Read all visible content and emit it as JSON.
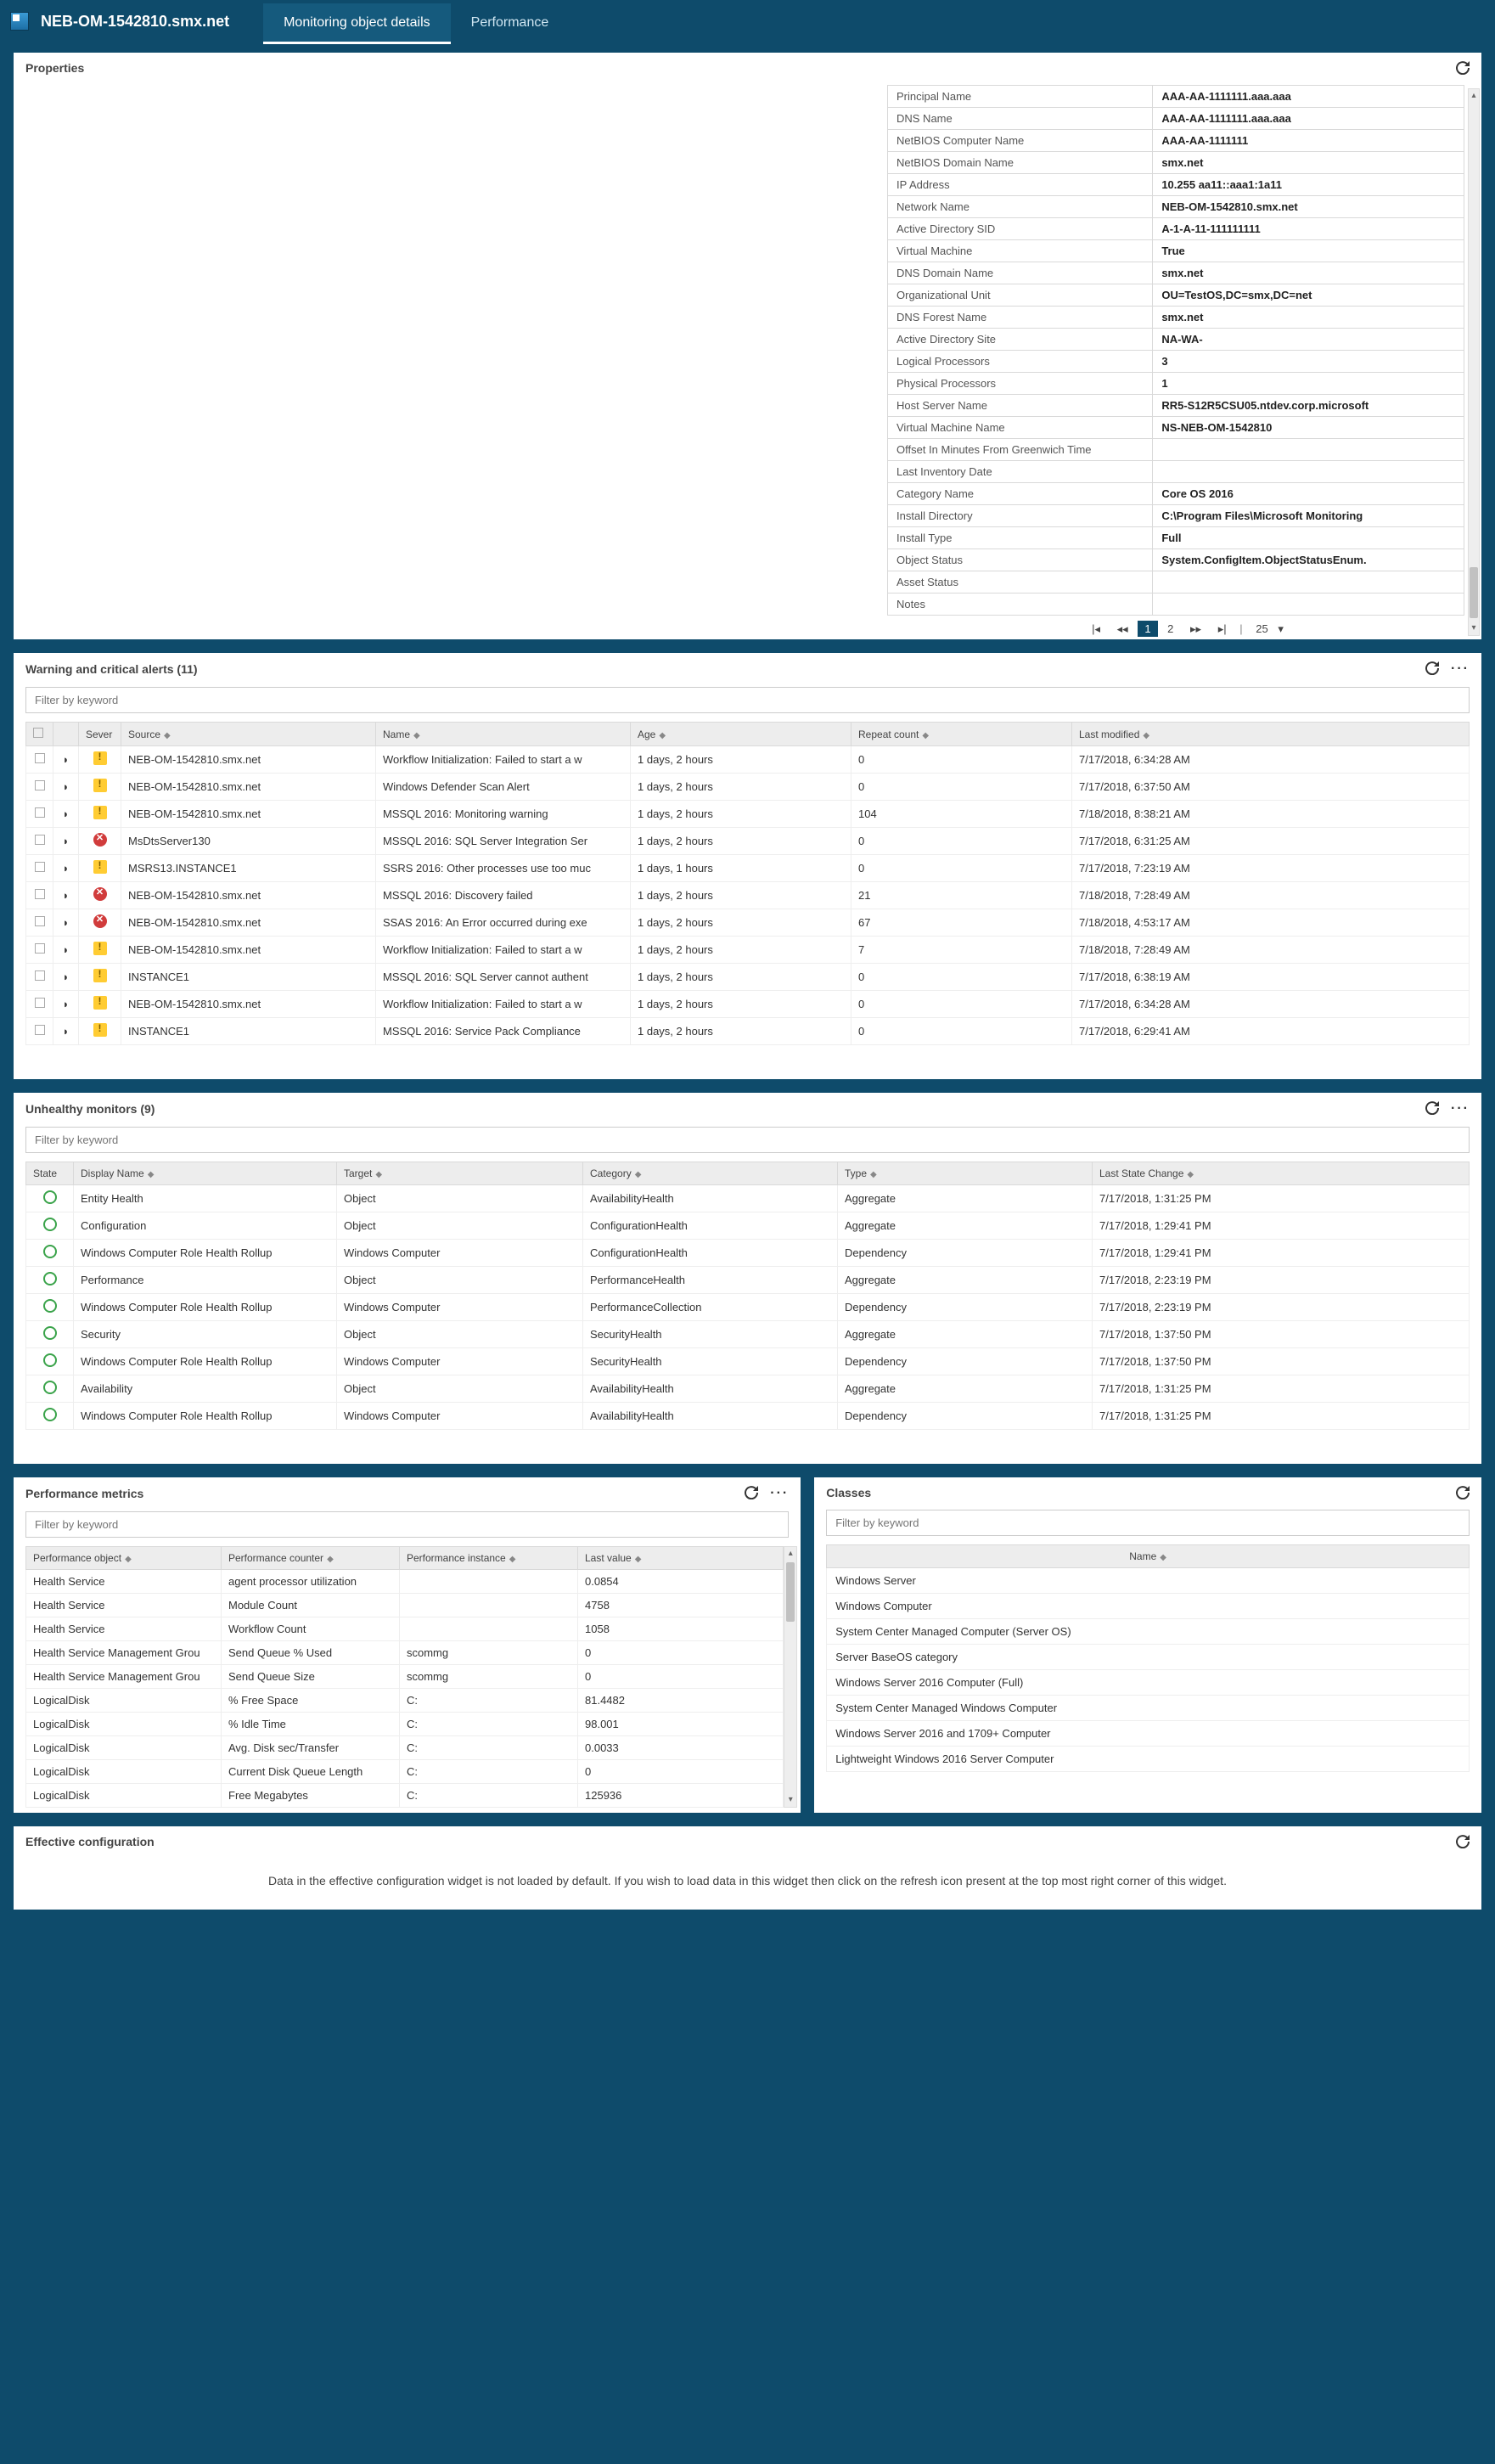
{
  "topbar": {
    "hostname": "NEB-OM-1542810.smx.net",
    "tabs": [
      {
        "label": "Monitoring object details",
        "active": true
      },
      {
        "label": "Performance",
        "active": false
      }
    ]
  },
  "properties": {
    "title": "Properties",
    "rows": [
      {
        "k": "Principal Name",
        "v": "AAA-AA-1111111.aaa.aaa"
      },
      {
        "k": "DNS Name",
        "v": "AAA-AA-1111111.aaa.aaa"
      },
      {
        "k": "NetBIOS Computer Name",
        "v": "AAA-AA-1111111"
      },
      {
        "k": "NetBIOS Domain Name",
        "v": "smx.net"
      },
      {
        "k": "IP Address",
        "v": "10.255     aa11::aaa1:1a11"
      },
      {
        "k": "Network Name",
        "v": "NEB-OM-1542810.smx.net"
      },
      {
        "k": "Active Directory SID",
        "v": "A-1-A-11-111111111"
      },
      {
        "k": "Virtual Machine",
        "v": "True"
      },
      {
        "k": "DNS Domain Name",
        "v": "smx.net"
      },
      {
        "k": "Organizational Unit",
        "v": "OU=TestOS,DC=smx,DC=net"
      },
      {
        "k": "DNS Forest Name",
        "v": "smx.net"
      },
      {
        "k": "Active Directory Site",
        "v": "NA-WA-"
      },
      {
        "k": "Logical Processors",
        "v": "3"
      },
      {
        "k": "Physical Processors",
        "v": "1"
      },
      {
        "k": "Host Server Name",
        "v": "RR5-S12R5CSU05.ntdev.corp.microsoft"
      },
      {
        "k": "Virtual Machine Name",
        "v": "NS-NEB-OM-1542810"
      },
      {
        "k": "Offset In Minutes From Greenwich Time",
        "v": ""
      },
      {
        "k": "Last Inventory Date",
        "v": ""
      },
      {
        "k": "Category Name",
        "v": "Core OS 2016"
      },
      {
        "k": "Install Directory",
        "v": "C:\\Program Files\\Microsoft Monitoring"
      },
      {
        "k": "Install Type",
        "v": "Full"
      },
      {
        "k": "Object Status",
        "v": "System.ConfigItem.ObjectStatusEnum."
      },
      {
        "k": "Asset Status",
        "v": ""
      },
      {
        "k": "Notes",
        "v": ""
      }
    ],
    "pager": {
      "first": "|◂",
      "prev": "◂◂",
      "pages": [
        "1",
        "2"
      ],
      "next": "▸▸",
      "last": "▸|",
      "size": "25",
      "sizeIcon": "▾"
    }
  },
  "alerts": {
    "title": "Warning and critical alerts (11)",
    "filterPlaceholder": "Filter by keyword",
    "columns": {
      "severity": "Sever",
      "source": "Source",
      "name": "Name",
      "age": "Age",
      "repeat": "Repeat count",
      "modified": "Last modified",
      "sort": "◆"
    },
    "rows": [
      {
        "sev": "warn",
        "source": "NEB-OM-1542810.smx.net",
        "name": "Workflow Initialization: Failed to start a w",
        "age": "1 days, 2 hours",
        "repeat": "0",
        "modified": "7/17/2018, 6:34:28 AM"
      },
      {
        "sev": "warn",
        "source": "NEB-OM-1542810.smx.net",
        "name": "Windows Defender Scan Alert",
        "age": "1 days, 2 hours",
        "repeat": "0",
        "modified": "7/17/2018, 6:37:50 AM"
      },
      {
        "sev": "warn",
        "source": "NEB-OM-1542810.smx.net",
        "name": "MSSQL 2016: Monitoring warning",
        "age": "1 days, 2 hours",
        "repeat": "104",
        "modified": "7/18/2018, 8:38:21 AM"
      },
      {
        "sev": "crit",
        "source": "MsDtsServer130",
        "name": "MSSQL 2016: SQL Server Integration Ser",
        "age": "1 days, 2 hours",
        "repeat": "0",
        "modified": "7/17/2018, 6:31:25 AM"
      },
      {
        "sev": "warn",
        "source": "MSRS13.INSTANCE1",
        "name": "SSRS 2016: Other processes use too muc",
        "age": "1 days, 1 hours",
        "repeat": "0",
        "modified": "7/17/2018, 7:23:19 AM"
      },
      {
        "sev": "crit",
        "source": "NEB-OM-1542810.smx.net",
        "name": "MSSQL 2016: Discovery failed",
        "age": "1 days, 2 hours",
        "repeat": "21",
        "modified": "7/18/2018, 7:28:49 AM"
      },
      {
        "sev": "crit",
        "source": "NEB-OM-1542810.smx.net",
        "name": "SSAS 2016: An Error occurred during exe",
        "age": "1 days, 2 hours",
        "repeat": "67",
        "modified": "7/18/2018, 4:53:17 AM"
      },
      {
        "sev": "warn",
        "source": "NEB-OM-1542810.smx.net",
        "name": "Workflow Initialization: Failed to start a w",
        "age": "1 days, 2 hours",
        "repeat": "7",
        "modified": "7/18/2018, 7:28:49 AM"
      },
      {
        "sev": "warn",
        "source": "INSTANCE1",
        "name": "MSSQL 2016: SQL Server cannot authent",
        "age": "1 days, 2 hours",
        "repeat": "0",
        "modified": "7/17/2018, 6:38:19 AM"
      },
      {
        "sev": "warn",
        "source": "NEB-OM-1542810.smx.net",
        "name": "Workflow Initialization: Failed to start a w",
        "age": "1 days, 2 hours",
        "repeat": "0",
        "modified": "7/17/2018, 6:34:28 AM"
      },
      {
        "sev": "warn",
        "source": "INSTANCE1",
        "name": "MSSQL 2016: Service Pack Compliance",
        "age": "1 days, 2 hours",
        "repeat": "0",
        "modified": "7/17/2018, 6:29:41 AM"
      }
    ]
  },
  "monitors": {
    "title": "Unhealthy monitors (9)",
    "filterPlaceholder": "Filter by keyword",
    "columns": {
      "state": "State",
      "display": "Display Name",
      "target": "Target",
      "category": "Category",
      "type": "Type",
      "lastChange": "Last State Change",
      "sort": "◆"
    },
    "rows": [
      {
        "display": "Entity Health",
        "target": "Object",
        "category": "AvailabilityHealth",
        "type": "Aggregate",
        "last": "7/17/2018, 1:31:25 PM"
      },
      {
        "display": "Configuration",
        "target": "Object",
        "category": "ConfigurationHealth",
        "type": "Aggregate",
        "last": "7/17/2018, 1:29:41 PM"
      },
      {
        "display": "Windows Computer Role Health Rollup",
        "target": "Windows Computer",
        "category": "ConfigurationHealth",
        "type": "Dependency",
        "last": "7/17/2018, 1:29:41 PM"
      },
      {
        "display": "Performance",
        "target": "Object",
        "category": "PerformanceHealth",
        "type": "Aggregate",
        "last": "7/17/2018, 2:23:19 PM"
      },
      {
        "display": "Windows Computer Role Health Rollup",
        "target": "Windows Computer",
        "category": "PerformanceCollection",
        "type": "Dependency",
        "last": "7/17/2018, 2:23:19 PM"
      },
      {
        "display": "Security",
        "target": "Object",
        "category": "SecurityHealth",
        "type": "Aggregate",
        "last": "7/17/2018, 1:37:50 PM"
      },
      {
        "display": "Windows Computer Role Health Rollup",
        "target": "Windows Computer",
        "category": "SecurityHealth",
        "type": "Dependency",
        "last": "7/17/2018, 1:37:50 PM"
      },
      {
        "display": "Availability",
        "target": "Object",
        "category": "AvailabilityHealth",
        "type": "Aggregate",
        "last": "7/17/2018, 1:31:25 PM"
      },
      {
        "display": "Windows Computer Role Health Rollup",
        "target": "Windows Computer",
        "category": "AvailabilityHealth",
        "type": "Dependency",
        "last": "7/17/2018, 1:31:25 PM"
      }
    ]
  },
  "perf": {
    "title": "Performance metrics",
    "filterPlaceholder": "Filter by keyword",
    "columns": {
      "obj": "Performance object",
      "counter": "Performance counter",
      "inst": "Performance instance",
      "last": "Last value",
      "sort": "◆"
    },
    "rows": [
      {
        "obj": "Health Service",
        "counter": "agent processor utilization",
        "inst": "",
        "last": "0.0854"
      },
      {
        "obj": "Health Service",
        "counter": "Module Count",
        "inst": "",
        "last": "4758"
      },
      {
        "obj": "Health Service",
        "counter": "Workflow Count",
        "inst": "",
        "last": "1058"
      },
      {
        "obj": "Health Service Management Grou",
        "counter": "Send Queue % Used",
        "inst": "scommg",
        "last": "0"
      },
      {
        "obj": "Health Service Management Grou",
        "counter": "Send Queue Size",
        "inst": "scommg",
        "last": "0"
      },
      {
        "obj": "LogicalDisk",
        "counter": "% Free Space",
        "inst": "C:",
        "last": "81.4482"
      },
      {
        "obj": "LogicalDisk",
        "counter": "% Idle Time",
        "inst": "C:",
        "last": "98.001"
      },
      {
        "obj": "LogicalDisk",
        "counter": "Avg. Disk sec/Transfer",
        "inst": "C:",
        "last": "0.0033"
      },
      {
        "obj": "LogicalDisk",
        "counter": "Current Disk Queue Length",
        "inst": "C:",
        "last": "0"
      },
      {
        "obj": "LogicalDisk",
        "counter": "Free Megabytes",
        "inst": "C:",
        "last": "125936"
      }
    ]
  },
  "classes": {
    "title": "Classes",
    "filterPlaceholder": "Filter by keyword",
    "column": {
      "name": "Name",
      "sort": "◆"
    },
    "rows": [
      "Windows Server",
      "Windows Computer",
      "System Center Managed Computer (Server OS)",
      "Server BaseOS category",
      "Windows Server 2016 Computer (Full)",
      "System Center Managed Windows Computer",
      "Windows Server 2016 and 1709+ Computer",
      "Lightweight Windows 2016 Server Computer"
    ]
  },
  "effective": {
    "title": "Effective configuration",
    "message": "Data in the effective configuration widget is not loaded by default. If you wish to load data in this widget then click on the refresh icon present at the top most right corner of this widget."
  }
}
